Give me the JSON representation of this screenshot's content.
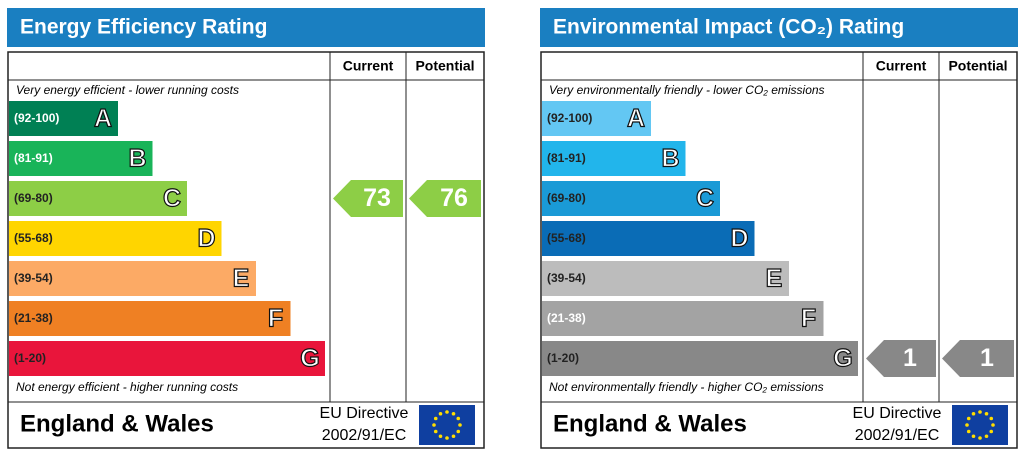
{
  "panels": [
    {
      "title": "Energy Efficiency Rating",
      "columns": [
        "Current",
        "Potential"
      ],
      "top_note": "Very energy efficient - lower running costs",
      "bottom_note": "Not energy efficient - higher running costs",
      "bands": [
        {
          "range": "(92-100)",
          "letter": "A",
          "color": "#008054",
          "label_color": "#ffffff"
        },
        {
          "range": "(81-91)",
          "letter": "B",
          "color": "#19b459",
          "label_color": "#ffffff"
        },
        {
          "range": "(69-80)",
          "letter": "C",
          "color": "#8dce46",
          "label_color": "#222222"
        },
        {
          "range": "(55-68)",
          "letter": "D",
          "color": "#ffd500",
          "label_color": "#222222"
        },
        {
          "range": "(39-54)",
          "letter": "E",
          "color": "#fcaa65",
          "label_color": "#222222"
        },
        {
          "range": "(21-38)",
          "letter": "F",
          "color": "#ef8023",
          "label_color": "#222222"
        },
        {
          "range": "(1-20)",
          "letter": "G",
          "color": "#e9153b",
          "label_color": "#222222"
        }
      ],
      "current": 73,
      "potential": 76,
      "footer": {
        "region": "England & Wales",
        "directive": "EU Directive",
        "code": "2002/91/EC"
      }
    },
    {
      "title": "Environmental Impact (CO₂) Rating",
      "columns": [
        "Current",
        "Potential"
      ],
      "top_note": "Very environmentally friendly - lower CO₂ emissions",
      "bottom_note": "Not environmentally friendly - higher CO₂ emissions",
      "bands": [
        {
          "range": "(92-100)",
          "letter": "A",
          "color": "#63c7f3",
          "label_color": "#222222"
        },
        {
          "range": "(81-91)",
          "letter": "B",
          "color": "#22b5eb",
          "label_color": "#222222"
        },
        {
          "range": "(69-80)",
          "letter": "C",
          "color": "#1a9ad6",
          "label_color": "#222222"
        },
        {
          "range": "(55-68)",
          "letter": "D",
          "color": "#0a6cb6",
          "label_color": "#222222"
        },
        {
          "range": "(39-54)",
          "letter": "E",
          "color": "#bcbcbc",
          "label_color": "#222222"
        },
        {
          "range": "(21-38)",
          "letter": "F",
          "color": "#a3a3a3",
          "label_color": "#ffffff"
        },
        {
          "range": "(1-20)",
          "letter": "G",
          "color": "#888888",
          "label_color": "#222222"
        }
      ],
      "current": 1,
      "potential": 1,
      "footer": {
        "region": "England & Wales",
        "directive": "EU Directive",
        "code": "2002/91/EC"
      }
    }
  ]
}
